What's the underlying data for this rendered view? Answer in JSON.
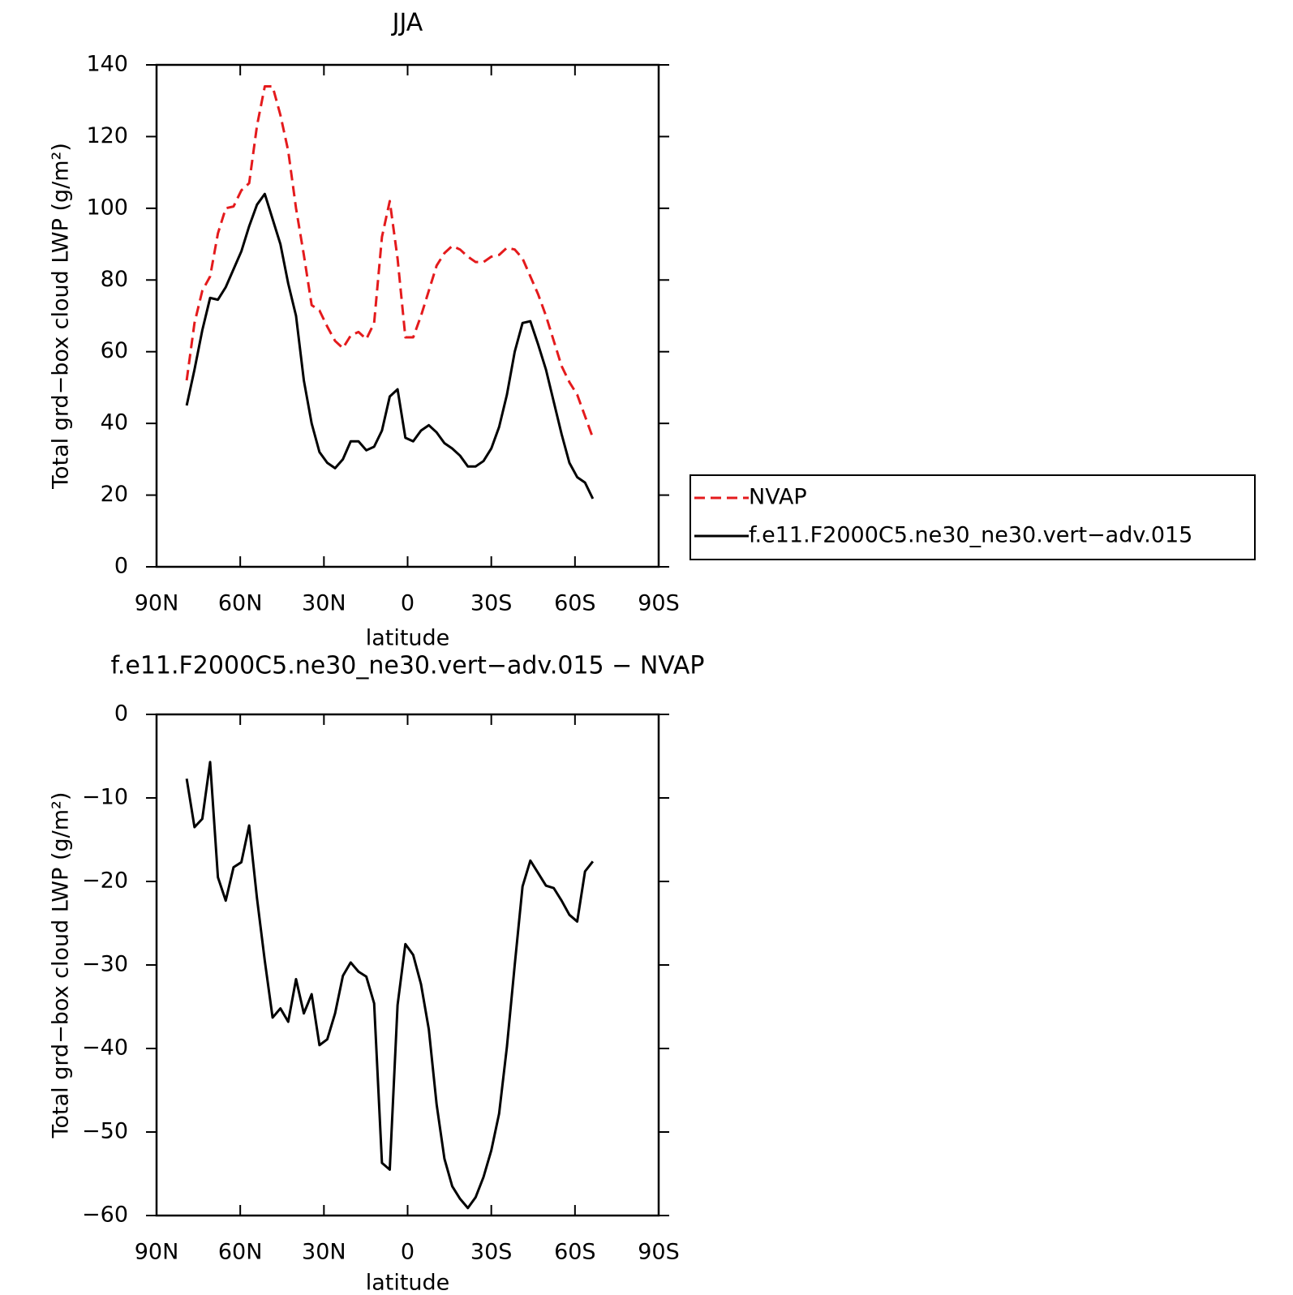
{
  "chart_data": [
    {
      "type": "line",
      "title": "JJA",
      "xlabel": "latitude",
      "ylabel": "Total grd−box cloud LWP (g/m²)",
      "x": [
        79.2,
        76.4,
        73.6,
        70.8,
        68,
        65.2,
        62.4,
        59.6,
        56.8,
        54,
        51.2,
        48.4,
        45.6,
        42.8,
        40,
        37.2,
        34.4,
        31.6,
        28.8,
        26,
        23.2,
        20.4,
        17.6,
        14.8,
        12,
        9.2,
        6.4,
        3.6,
        0.8,
        -2,
        -4.8,
        -7.6,
        -10.4,
        -13.2,
        -16,
        -18.8,
        -21.6,
        -24.4,
        -27.2,
        -30,
        -32.8,
        -35.6,
        -38.4,
        -41.2,
        -44,
        -46.8,
        -49.6,
        -52.4,
        -55.2,
        -58,
        -60.8,
        -63.6,
        -66.4
      ],
      "series": [
        {
          "name": "NVAP",
          "color": "#e41a1c",
          "dash": true,
          "values": [
            52,
            68,
            77,
            81,
            93,
            100,
            100.5,
            105,
            107,
            123,
            134,
            134,
            126,
            116,
            100,
            87,
            73,
            71.5,
            67,
            63,
            61,
            64.5,
            65.5,
            63.5,
            68,
            92,
            102,
            86,
            64,
            64,
            70,
            77,
            84,
            87.5,
            89.5,
            88.5,
            86.5,
            85,
            85,
            86.5,
            87,
            89,
            88.5,
            86,
            81,
            76,
            70,
            63,
            56,
            51.5,
            48,
            42,
            36
          ]
        },
        {
          "name": "f.e11.F2000C5.ne30_ne30.vert−adv.015",
          "color": "#000000",
          "dash": false,
          "values": [
            45,
            55,
            66,
            75,
            74.5,
            78,
            83,
            88,
            95,
            101,
            104,
            97,
            90,
            79,
            70,
            52,
            40,
            32,
            29,
            27.5,
            30,
            35,
            35,
            32.5,
            33.5,
            38,
            47.5,
            49.5,
            36,
            35,
            38,
            39.5,
            37.5,
            34.5,
            33,
            31,
            28,
            28,
            29.5,
            33,
            39,
            48,
            60,
            68,
            68.5,
            62,
            55,
            46,
            37,
            29,
            25,
            23.5,
            19
          ]
        }
      ],
      "xlim": [
        90,
        -90
      ],
      "xticks": [
        {
          "value": 90,
          "label": "90N"
        },
        {
          "value": 60,
          "label": "60N"
        },
        {
          "value": 30,
          "label": "30N"
        },
        0,
        {
          "value": -30,
          "label": "30S"
        },
        {
          "value": -60,
          "label": "60S"
        },
        {
          "value": -90,
          "label": "90S"
        }
      ],
      "ylim": [
        0,
        140
      ],
      "yticks": [
        0,
        20,
        40,
        60,
        80,
        100,
        120,
        140
      ],
      "legend": "right"
    },
    {
      "type": "line",
      "title": "f.e11.F2000C5.ne30_ne30.vert−adv.015 − NVAP",
      "xlabel": "latitude",
      "ylabel": "Total grd−box cloud LWP (g/m²)",
      "x": [
        79.2,
        76.4,
        73.6,
        70.8,
        68,
        65.2,
        62.4,
        59.6,
        56.8,
        54,
        51.2,
        48.4,
        45.6,
        42.8,
        40,
        37.2,
        34.4,
        31.6,
        28.8,
        26,
        23.2,
        20.4,
        17.6,
        14.8,
        12,
        9.2,
        6.4,
        3.6,
        0.8,
        -2,
        -4.8,
        -7.6,
        -10.4,
        -13.2,
        -16,
        -18.8,
        -21.6,
        -24.4,
        -27.2,
        -30,
        -32.8,
        -35.6,
        -38.4,
        -41.2,
        -44,
        -46.8,
        -49.6,
        -52.4,
        -55.2,
        -58,
        -60.8,
        -63.6,
        -66.4
      ],
      "series": [
        {
          "color": "#000000",
          "dash": false,
          "values": [
            -7.7,
            -13.5,
            -12.5,
            -5.7,
            -19.5,
            -22.3,
            -18.3,
            -17.7,
            -13.3,
            -22,
            -29.5,
            -36.3,
            -35.2,
            -36.8,
            -31.7,
            -35.8,
            -33.5,
            -39.6,
            -38.9,
            -35.8,
            -31.3,
            -29.7,
            -30.8,
            -31.4,
            -34.6,
            -53.7,
            -54.5,
            -34.8,
            -27.5,
            -28.8,
            -32.3,
            -37.7,
            -46.7,
            -53.2,
            -56.5,
            -58,
            -59.1,
            -57.8,
            -55.4,
            -52.2,
            -47.8,
            -39.8,
            -30,
            -20.6,
            -17.5,
            -19,
            -20.5,
            -20.8,
            -22.3,
            -24,
            -24.8,
            -18.8,
            -17.6
          ]
        }
      ],
      "xlim": [
        90,
        -90
      ],
      "xticks": [
        {
          "value": 90,
          "label": "90N"
        },
        {
          "value": 60,
          "label": "60N"
        },
        {
          "value": 30,
          "label": "30N"
        },
        0,
        {
          "value": -30,
          "label": "30S"
        },
        {
          "value": -60,
          "label": "60S"
        },
        {
          "value": -90,
          "label": "90S"
        }
      ],
      "ylim": [
        -60,
        0
      ],
      "yticks": [
        {
          "value": -60,
          "label": "−60"
        },
        {
          "value": -50,
          "label": "−50"
        },
        {
          "value": -40,
          "label": "−40"
        },
        {
          "value": -30,
          "label": "−30"
        },
        {
          "value": -20,
          "label": "−20"
        },
        {
          "value": -10,
          "label": "−10"
        },
        0
      ]
    }
  ]
}
